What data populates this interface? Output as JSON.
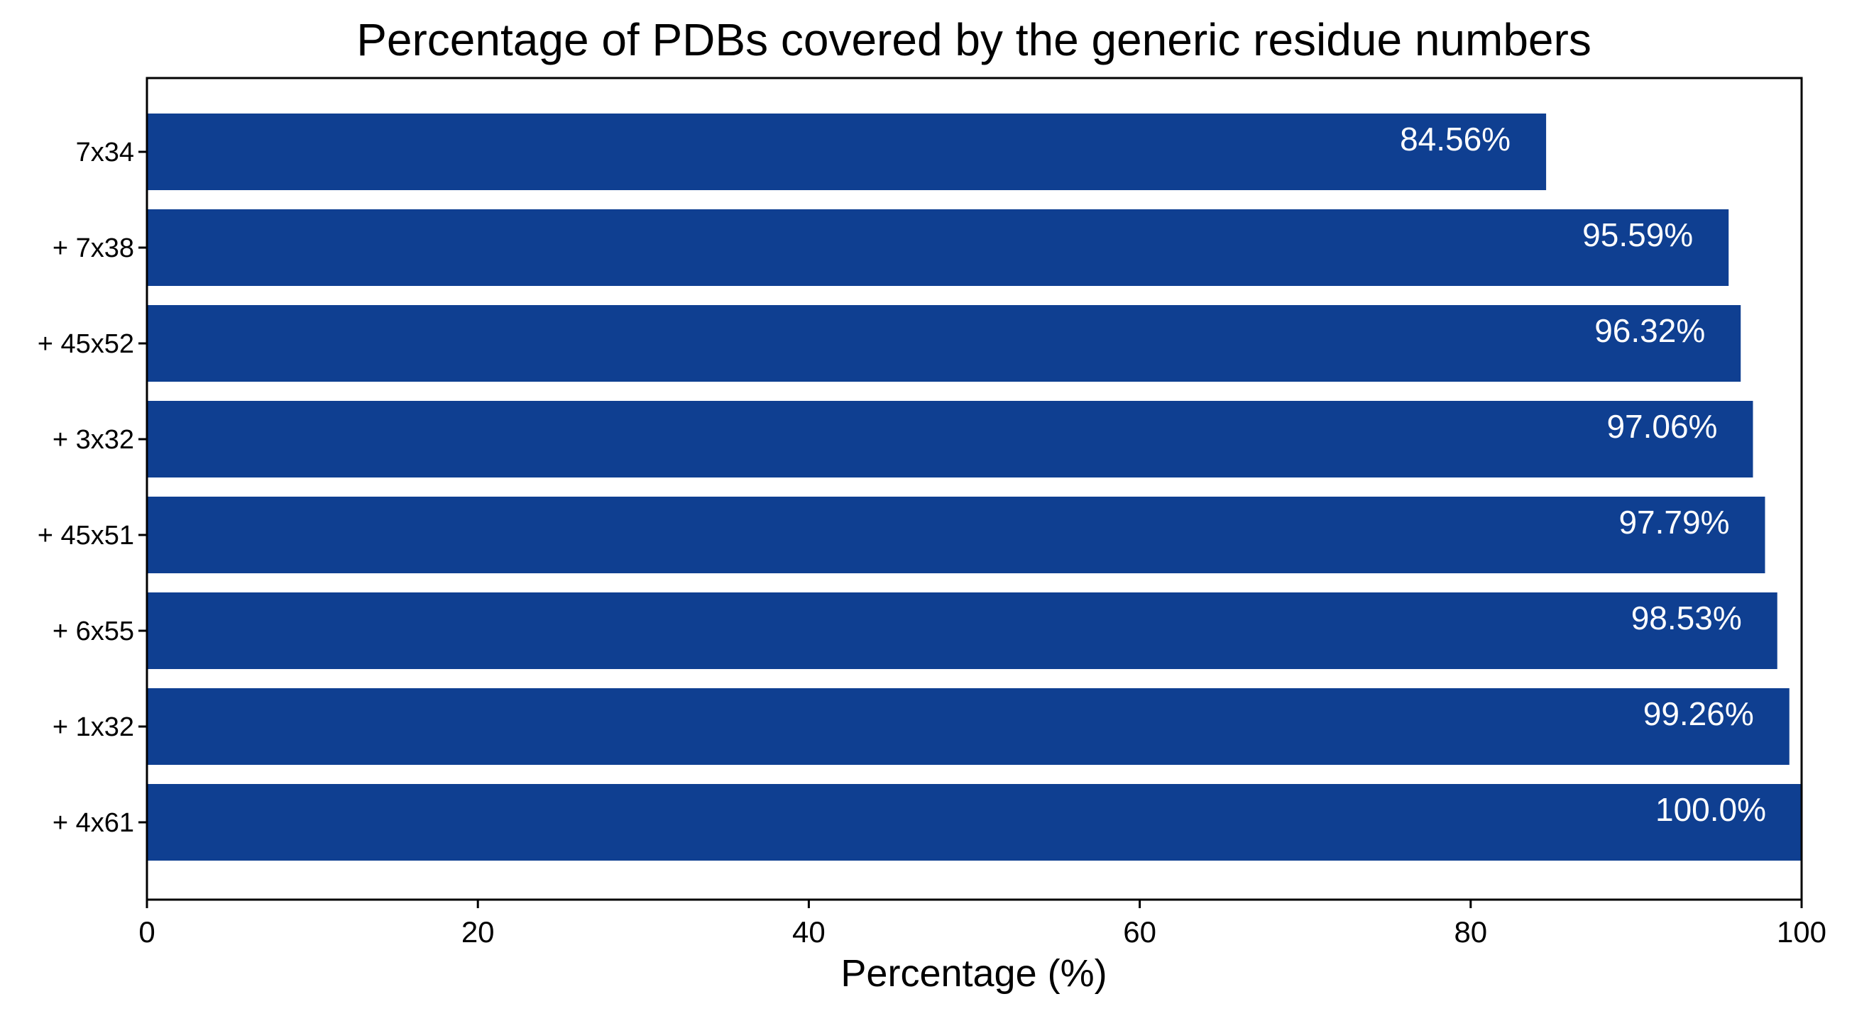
{
  "chart_data": {
    "type": "bar",
    "orientation": "horizontal",
    "title": "Percentage of PDBs covered by the generic residue numbers",
    "xlabel": "Percentage (%)",
    "ylabel": "",
    "categories": [
      "7x34",
      "+ 7x38",
      "+ 45x52",
      "+ 3x32",
      "+ 45x51",
      "+ 6x55",
      "+ 1x32",
      "+ 4x61"
    ],
    "values": [
      84.56,
      95.59,
      96.32,
      97.06,
      97.79,
      98.53,
      99.26,
      100.0
    ],
    "data_labels": [
      "84.56%",
      "95.59%",
      "96.32%",
      "97.06%",
      "97.79%",
      "98.53%",
      "99.26%",
      "100.0%"
    ],
    "xlim": [
      0,
      100
    ],
    "xticks": [
      0,
      20,
      40,
      60,
      80,
      100
    ],
    "xtick_labels": [
      "0",
      "20",
      "40",
      "60",
      "80",
      "100"
    ],
    "grid": false,
    "legend": "none",
    "bar_color": "#0f3f91",
    "label_color": "#ffffff"
  }
}
